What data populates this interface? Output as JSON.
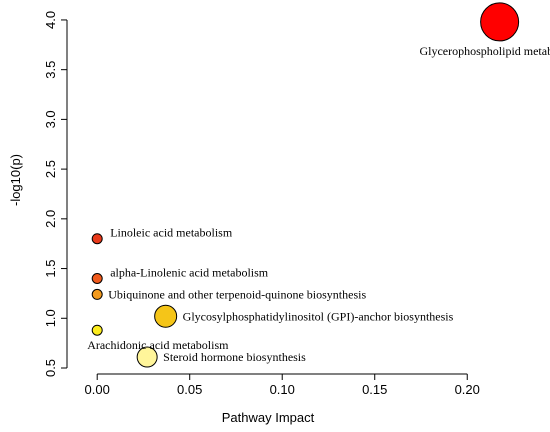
{
  "chart_data": {
    "type": "scatter",
    "title": "",
    "xlabel": "Pathway Impact",
    "ylabel": "-log10(p)",
    "xlim": [
      -0.012,
      0.235
    ],
    "ylim": [
      0.5,
      4.1
    ],
    "xticks": [
      0.0,
      0.05,
      0.1,
      0.15,
      0.2
    ],
    "xtick_labels": [
      "0.00",
      "0.05",
      "0.10",
      "0.15",
      "0.20"
    ],
    "yticks": [
      0.5,
      1.0,
      1.5,
      2.0,
      2.5,
      3.0,
      3.5,
      4.0
    ],
    "ytick_labels": [
      "0.5",
      "1.0",
      "1.5",
      "2.0",
      "2.5",
      "3.0",
      "3.5",
      "4.0"
    ],
    "grid": false,
    "points": [
      {
        "label": "Glycerophospholipid metabolism",
        "x": 0.2175,
        "y": 3.98,
        "color": "#ff0000",
        "label_pos": "below"
      },
      {
        "label": "Linoleic acid metabolism",
        "x": 0.0,
        "y": 1.8,
        "color": "#e8391a",
        "label_pos": "right-up"
      },
      {
        "label": "alpha-Linolenic acid metabolism",
        "x": 0.0,
        "y": 1.4,
        "color": "#f05a1c",
        "label_pos": "right-up"
      },
      {
        "label": "Ubiquinone and other terpenoid-quinone biosynthesis",
        "x": 0.0,
        "y": 1.24,
        "color": "#f29a1e",
        "label_pos": "right"
      },
      {
        "label": "Glycosylphosphatidylinositol (GPI)-anchor biosynthesis",
        "x": 0.037,
        "y": 1.02,
        "color": "#f5c518",
        "label_pos": "right"
      },
      {
        "label": "Arachidonic acid metabolism",
        "x": 0.0,
        "y": 0.88,
        "color": "#fcec1e",
        "label_pos": "below"
      },
      {
        "label": "Steroid hormone biosynthesis",
        "x": 0.027,
        "y": 0.61,
        "color": "#fff59a",
        "label_pos": "right"
      }
    ],
    "point_sizes": [
      19,
      5,
      5,
      5,
      11,
      5,
      10
    ]
  }
}
